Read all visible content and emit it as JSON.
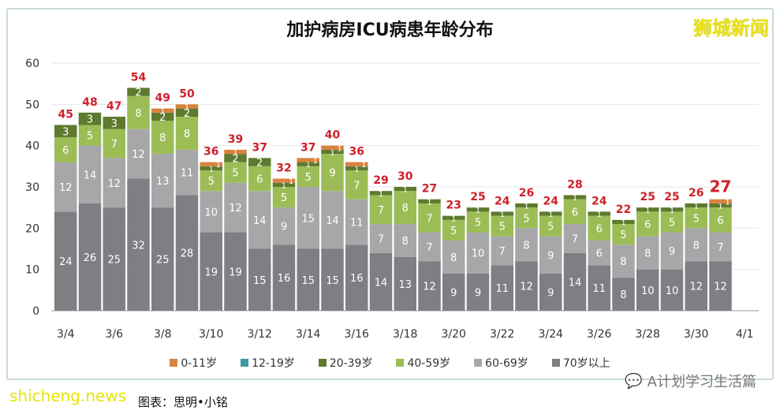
{
  "chart_data": {
    "type": "bar",
    "stacked": true,
    "title": "加护病房ICU病患年龄分布",
    "categories": [
      "3/4",
      "3/5",
      "3/6",
      "3/7",
      "3/8",
      "3/9",
      "3/10",
      "3/11",
      "3/12",
      "3/13",
      "3/14",
      "3/15",
      "3/16",
      "3/17",
      "3/18",
      "3/19",
      "3/20",
      "3/21",
      "3/22",
      "3/23",
      "3/24",
      "3/25",
      "3/26",
      "3/27",
      "3/28",
      "3/29",
      "3/30",
      "3/31",
      "4/1"
    ],
    "tick_labels": [
      "3/4",
      "3/6",
      "3/8",
      "3/10",
      "3/12",
      "3/14",
      "3/16",
      "3/18",
      "3/20",
      "3/22",
      "3/24",
      "3/26",
      "3/28",
      "3/30",
      "4/1"
    ],
    "series": [
      {
        "name": "70岁以上",
        "color": "#7f7e83",
        "values": [
          24,
          26,
          25,
          32,
          25,
          28,
          19,
          19,
          15,
          16,
          15,
          15,
          16,
          14,
          13,
          12,
          9,
          9,
          11,
          12,
          9,
          14,
          11,
          8,
          10,
          10,
          12,
          12,
          null
        ]
      },
      {
        "name": "60-69岁",
        "color": "#a7a7aa",
        "values": [
          12,
          14,
          12,
          12,
          13,
          11,
          10,
          12,
          14,
          9,
          15,
          14,
          11,
          7,
          8,
          7,
          8,
          10,
          7,
          8,
          9,
          7,
          6,
          8,
          8,
          9,
          8,
          7,
          null
        ]
      },
      {
        "name": "40-59岁",
        "color": "#9cbd56",
        "values": [
          6,
          5,
          7,
          8,
          8,
          8,
          5,
          5,
          6,
          5,
          5,
          9,
          7,
          7,
          8,
          7,
          5,
          5,
          5,
          5,
          5,
          6,
          6,
          5,
          6,
          5,
          5,
          6,
          null
        ]
      },
      {
        "name": "20-39岁",
        "color": "#5e7a2e",
        "values": [
          3,
          3,
          3,
          2,
          2,
          2,
          1,
          2,
          2,
          1,
          1,
          1,
          1,
          1,
          1,
          1,
          1,
          1,
          1,
          1,
          1,
          1,
          1,
          1,
          1,
          1,
          1,
          1,
          null
        ]
      },
      {
        "name": "12-19岁",
        "color": "#3d9aa6",
        "values": [
          0,
          0,
          0,
          0,
          0,
          0,
          0,
          0,
          0,
          0,
          0,
          0,
          0,
          0,
          0,
          0,
          0,
          0,
          0,
          0,
          0,
          0,
          0,
          0,
          0,
          0,
          0,
          0,
          null
        ]
      },
      {
        "name": "0-11岁",
        "color": "#d9823e",
        "values": [
          0,
          0,
          0,
          0,
          1,
          1,
          1,
          1,
          0,
          1,
          1,
          1,
          1,
          0,
          0,
          0,
          0,
          0,
          0,
          0,
          0,
          0,
          0,
          0,
          0,
          0,
          0,
          1,
          null
        ]
      }
    ],
    "totals": [
      45,
      48,
      47,
      54,
      49,
      50,
      36,
      39,
      37,
      32,
      37,
      40,
      36,
      29,
      30,
      27,
      23,
      25,
      24,
      26,
      24,
      28,
      24,
      22,
      25,
      25,
      26,
      27,
      null
    ],
    "legend_order": [
      "0-11岁",
      "12-19岁",
      "20-39岁",
      "40-59岁",
      "60-69岁",
      "70岁以上"
    ],
    "ylim": [
      0,
      60
    ],
    "yticks": [
      0,
      10,
      20,
      30,
      40,
      50,
      60
    ],
    "grid": true,
    "legend": "bottom",
    "total_color": "#d0202a"
  },
  "watermarks": {
    "top": "狮城新闻",
    "bottom": "shicheng.news",
    "wechat": "A计划学习生活篇"
  },
  "caption": "图表：思明•小铭"
}
